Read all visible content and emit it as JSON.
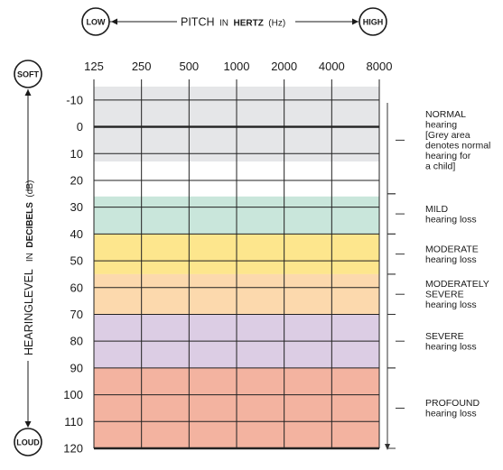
{
  "chart_data": {
    "type": "heatmap",
    "x_axis": {
      "label_main": "PITCH",
      "label_in": "IN",
      "label_unit_bold": "HERTZ",
      "label_unit_abbr": "(Hz)",
      "ends": {
        "low": "LOW",
        "high": "HIGH"
      },
      "ticks": [
        "125",
        "250",
        "500",
        "1000",
        "2000",
        "4000",
        "8000"
      ]
    },
    "y_axis": {
      "label_main": "HEARINGLEVEL",
      "label_in": "IN",
      "label_unit_bold": "DECIBELS",
      "label_unit_abbr": "(dB)",
      "ends": {
        "soft": "SOFT",
        "loud": "LOUD"
      },
      "ylim": [
        -15,
        120
      ],
      "ticks": [
        -10,
        0,
        10,
        20,
        30,
        40,
        50,
        60,
        70,
        80,
        90,
        100,
        110,
        120
      ]
    },
    "bands": [
      {
        "from": -15,
        "to": 13,
        "color": "#e5e6e8"
      },
      {
        "from": 13,
        "to": 26,
        "color": "#ffffff"
      },
      {
        "from": 26,
        "to": 40,
        "color": "#c9e6db"
      },
      {
        "from": 40,
        "to": 55,
        "color": "#fde68d"
      },
      {
        "from": 55,
        "to": 70,
        "color": "#fcd9ad"
      },
      {
        "from": 70,
        "to": 90,
        "color": "#dccde4"
      },
      {
        "from": 90,
        "to": 120,
        "color": "#f3b3a0"
      }
    ],
    "categories": [
      {
        "from": -15,
        "to": 25,
        "lines": [
          "NORMAL",
          "hearing",
          "[Grey area",
          "denotes normal",
          "hearing for",
          "a child]"
        ]
      },
      {
        "from": 25,
        "to": 40,
        "lines": [
          "MILD",
          "hearing loss"
        ]
      },
      {
        "from": 40,
        "to": 55,
        "lines": [
          "MODERATE",
          "hearing loss"
        ]
      },
      {
        "from": 55,
        "to": 70,
        "lines": [
          "MODERATELY",
          "SEVERE",
          "hearing loss"
        ]
      },
      {
        "from": 70,
        "to": 90,
        "lines": [
          "SEVERE",
          "hearing loss"
        ]
      },
      {
        "from": 90,
        "to": 120,
        "lines": [
          "PROFOUND",
          "hearing loss"
        ]
      }
    ]
  }
}
